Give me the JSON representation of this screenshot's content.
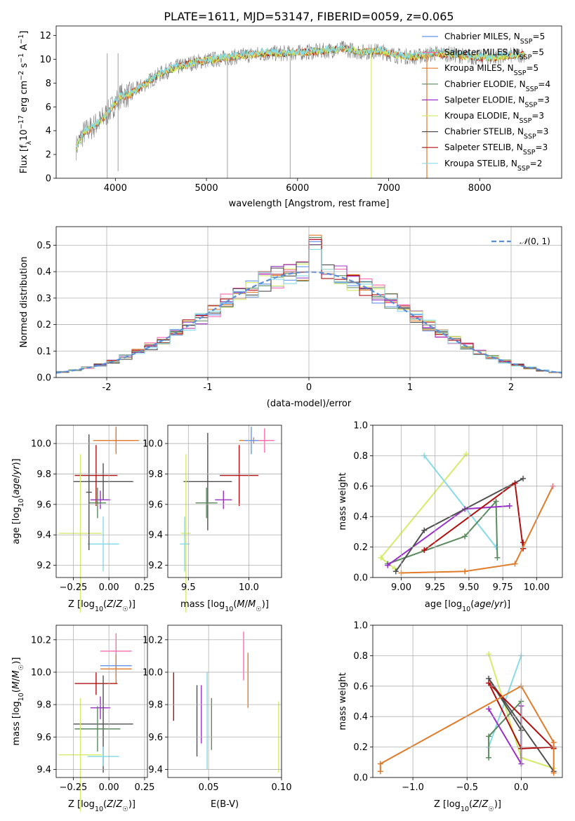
{
  "figure": {
    "title": "PLATE=1611, MJD=53147, FIBERID=0059, z=0.065"
  },
  "colors": {
    "Chabrier MILES": "#6495ed",
    "Salpeter MILES": "#ff69b4",
    "Kroupa MILES": "#e07b2a",
    "Chabrier ELODIE": "#5a8a5e",
    "Salpeter ELODIE": "#9b30c8",
    "Kroupa ELODIE": "#d4ec6a",
    "Chabrier STELIB": "#505050",
    "Salpeter STELIB": "#b01010",
    "Kroupa STELIB": "#87dbe6",
    "data": "#808080",
    "normal": "#5b8dd6"
  },
  "chart_data": [
    {
      "type": "line",
      "id": "spectrum",
      "xlabel": "wavelength [Angstrom, rest frame]",
      "ylabel": "Flux [f$_\\lambda$10$^{-17}$ erg cm$^{-2}$ s$^{-1}$ A$^{-1}$]",
      "xlim": [
        3350,
        8900
      ],
      "ylim": [
        0,
        12.8
      ],
      "xticks": [
        4000,
        5000,
        6000,
        7000,
        8000
      ],
      "yticks": [
        0,
        2,
        4,
        6,
        8,
        10,
        12
      ],
      "grid": false,
      "legend_position": "right",
      "legend": [
        {
          "model": "Chabrier MILES",
          "text": "Chabrier MILES, N",
          "sub": "SSP",
          "val": "=5"
        },
        {
          "model": "Salpeter MILES",
          "text": "Salpeter MILES, N",
          "sub": "SSP",
          "val": "=5"
        },
        {
          "model": "Kroupa MILES",
          "text": "Kroupa MILES, N",
          "sub": "SSP",
          "val": "=5"
        },
        {
          "model": "Chabrier ELODIE",
          "text": "Chabrier ELODIE, N",
          "sub": "SSP",
          "val": "=4"
        },
        {
          "model": "Salpeter ELODIE",
          "text": "Salpeter ELODIE, N",
          "sub": "SSP",
          "val": "=3"
        },
        {
          "model": "Kroupa ELODIE",
          "text": "Kroupa ELODIE, N",
          "sub": "SSP",
          "val": "=3"
        },
        {
          "model": "Chabrier STELIB",
          "text": "Chabrier STELIB, N",
          "sub": "SSP",
          "val": "=3"
        },
        {
          "model": "Salpeter STELIB",
          "text": "Salpeter STELIB, N",
          "sub": "SSP",
          "val": "=3"
        },
        {
          "model": "Kroupa STELIB",
          "text": "Kroupa STELIB, N",
          "sub": "SSP",
          "val": "=2"
        }
      ],
      "continuum_wavelength": [
        3570,
        3650,
        3750,
        3850,
        3950,
        4050,
        4150,
        4300,
        4500,
        4700,
        4900,
        5100,
        5300,
        5500,
        5700,
        5900,
        6100,
        6300,
        6500,
        6700,
        6900,
        7100,
        7300,
        7500,
        7700,
        7900,
        8100,
        8300,
        8500
      ],
      "continuum_flux": [
        2.6,
        3.8,
        4.3,
        4.9,
        5.8,
        6.9,
        7.0,
        7.8,
        8.8,
        9.4,
        9.8,
        10.0,
        10.2,
        10.4,
        10.5,
        10.5,
        10.6,
        10.7,
        10.9,
        10.6,
        10.7,
        10.3,
        10.2,
        10.5,
        10.4,
        10.2,
        10.1,
        10.3,
        10.4
      ]
    },
    {
      "type": "line",
      "id": "residuals",
      "xlabel": "(data-model)/error",
      "ylabel": "Normed distribution",
      "xlim": [
        -2.5,
        2.5
      ],
      "ylim": [
        0,
        0.57
      ],
      "xticks": [
        -2,
        -1,
        0,
        1,
        2
      ],
      "yticks": [
        0.0,
        0.1,
        0.2,
        0.3,
        0.4,
        0.5
      ],
      "grid": true,
      "legend_position": "top-right",
      "legend_label": "N(0, 1)",
      "bin_width": 0.125
    },
    {
      "type": "scatter",
      "id": "age-vs-Z",
      "xlabel": "Z [log10(Z/Z☉)]",
      "ylabel": "age  [log10(age/yr)]",
      "xlim": [
        -0.37,
        0.27
      ],
      "ylim": [
        9.12,
        10.12
      ],
      "xticks": [
        -0.25,
        0.0,
        0.25
      ],
      "xticklabels": [
        "−0.25",
        "0.00",
        "0.25"
      ],
      "yticks": [
        9.2,
        9.4,
        9.6,
        9.8,
        10.0
      ],
      "grid": true,
      "errorbars": [
        {
          "model": "Salpeter MILES",
          "x": 0.05,
          "y": 10.02,
          "xerr": 0.13,
          "yerr": 0.07
        },
        {
          "model": "Kroupa MILES",
          "x": 0.05,
          "y": 10.02,
          "xerr": 0.16,
          "yerr": 0.09
        },
        {
          "model": "Chabrier STELIB",
          "x": -0.04,
          "y": 9.75,
          "xerr": 0.21,
          "yerr": 0.12
        },
        {
          "model": "Salpeter STELIB",
          "x": -0.09,
          "y": 9.79,
          "xerr": 0.15,
          "yerr": 0.2
        },
        {
          "model": "Salpeter ELODIE",
          "x": -0.06,
          "y": 9.63,
          "xerr": 0.07,
          "yerr": 0.06
        },
        {
          "model": "Chabrier ELODIE",
          "x": -0.08,
          "y": 9.61,
          "xerr": 0.06,
          "yerr": 0.1
        },
        {
          "model": "Kroupa ELODIE",
          "x": -0.2,
          "y": 9.41,
          "xerr": 0.15,
          "yerr": 0.52
        },
        {
          "model": "Kroupa STELIB",
          "x": -0.04,
          "y": 9.34,
          "xerr": 0.11,
          "yerr": 0.18
        },
        {
          "model": "Chabrier STELIB",
          "x": -0.14,
          "y": 9.68,
          "xerr": 0.02,
          "yerr": 0.38
        }
      ]
    },
    {
      "type": "scatter",
      "id": "age-vs-mass",
      "xlabel": "mass [log10(M/M☉)]",
      "ylabel": "",
      "xlim": [
        9.33,
        10.27
      ],
      "ylim": [
        9.12,
        10.12
      ],
      "xticks": [
        9.5,
        10.0
      ],
      "xticklabels": [
        "9.5",
        "10.0"
      ],
      "yticks": [
        9.2,
        9.4,
        9.6,
        9.8,
        10.0
      ],
      "grid": true,
      "errorbars": [
        {
          "model": "Kroupa MILES",
          "x": 10.04,
          "y": 10.02,
          "xerr": 0.12,
          "yerr": 0.02
        },
        {
          "model": "Salpeter MILES",
          "x": 10.13,
          "y": 10.02,
          "xerr": 0.08,
          "yerr": 0.08
        },
        {
          "model": "Chabrier STELIB",
          "x": 9.66,
          "y": 9.75,
          "xerr": 0.2,
          "yerr": 0.32
        },
        {
          "model": "Salpeter STELIB",
          "x": 9.92,
          "y": 9.79,
          "xerr": 0.16,
          "yerr": 0.2
        },
        {
          "model": "Salpeter ELODIE",
          "x": 9.79,
          "y": 9.63,
          "xerr": 0.07,
          "yerr": 0.06
        },
        {
          "model": "Chabrier ELODIE",
          "x": 9.65,
          "y": 9.61,
          "xerr": 0.09,
          "yerr": 0.1
        },
        {
          "model": "Kroupa ELODIE",
          "x": 9.48,
          "y": 9.41,
          "xerr": 0.04,
          "yerr": 0.52
        },
        {
          "model": "Kroupa STELIB",
          "x": 9.47,
          "y": 9.34,
          "xerr": 0.04,
          "yerr": 0.18
        },
        {
          "model": "Chabrier MILES",
          "x": 10.02,
          "y": 10.02,
          "xerr": 0.06,
          "yerr": 0.09
        }
      ]
    },
    {
      "type": "line",
      "id": "weight-vs-age",
      "xlabel": "age  [log10(age/yr)]",
      "ylabel": "mass weight",
      "xlim": [
        8.79,
        10.19
      ],
      "ylim": [
        0,
        1.0
      ],
      "xticks": [
        9.0,
        9.25,
        9.5,
        9.75,
        10.0
      ],
      "xticklabels": [
        "9.00",
        "9.25",
        "9.50",
        "9.75",
        "10.00"
      ],
      "yticks": [
        0.0,
        0.2,
        0.4,
        0.6,
        0.8,
        1.0
      ],
      "grid": true,
      "series": [
        {
          "model": "Kroupa ELODIE",
          "x": [
            8.95,
            8.85,
            9.48
          ],
          "y": [
            0.06,
            0.13,
            0.81
          ]
        },
        {
          "model": "Kroupa STELIB",
          "x": [
            9.17,
            9.7
          ],
          "y": [
            0.8,
            0.2
          ]
        },
        {
          "model": "Chabrier ELODIE",
          "x": [
            8.9,
            9.47,
            9.7,
            9.71
          ],
          "y": [
            0.09,
            0.27,
            0.5,
            0.13
          ]
        },
        {
          "model": "Salpeter ELODIE",
          "x": [
            8.9,
            9.47,
            9.8
          ],
          "y": [
            0.08,
            0.45,
            0.47
          ]
        },
        {
          "model": "Chabrier STELIB",
          "x": [
            8.96,
            9.17,
            9.9
          ],
          "y": [
            0.04,
            0.31,
            0.65
          ]
        },
        {
          "model": "Salpeter STELIB",
          "x": [
            9.17,
            9.84,
            9.9,
            9.9
          ],
          "y": [
            0.18,
            0.62,
            0.19,
            0.23
          ]
        },
        {
          "model": "Kroupa MILES",
          "x": [
            9.0,
            9.47,
            9.84,
            10.12
          ],
          "y": [
            0.03,
            0.04,
            0.09,
            0.6
          ]
        },
        {
          "model": "Salpeter MILES",
          "x": [
            10.12
          ],
          "y": [
            0.6
          ]
        }
      ]
    },
    {
      "type": "scatter",
      "id": "mass-vs-Z",
      "xlabel": "Z [log10(Z/Z☉)]",
      "ylabel": "mass [log10(M/M☉)]",
      "xlim": [
        -0.37,
        0.27
      ],
      "ylim": [
        9.35,
        10.29
      ],
      "xticks": [
        -0.25,
        0.0,
        0.25
      ],
      "xticklabels": [
        "−0.25",
        "0.00",
        "0.25"
      ],
      "yticks": [
        9.4,
        9.6,
        9.8,
        10.0,
        10.2
      ],
      "grid": true,
      "errorbars": [
        {
          "model": "Salpeter MILES",
          "x": 0.05,
          "y": 10.13,
          "xerr": 0.11,
          "yerr": 0.11
        },
        {
          "model": "Chabrier MILES",
          "x": 0.05,
          "y": 10.04,
          "xerr": 0.11,
          "yerr": 0.07
        },
        {
          "model": "Kroupa MILES",
          "x": 0.05,
          "y": 10.02,
          "xerr": 0.11,
          "yerr": 0.09
        },
        {
          "model": "Salpeter STELIB",
          "x": -0.09,
          "y": 9.93,
          "xerr": 0.15,
          "yerr": 0.07
        },
        {
          "model": "Salpeter ELODIE",
          "x": -0.06,
          "y": 9.78,
          "xerr": 0.07,
          "yerr": 0.07
        },
        {
          "model": "Chabrier STELIB",
          "x": -0.04,
          "y": 9.68,
          "xerr": 0.21,
          "yerr": 0.3
        },
        {
          "model": "Chabrier ELODIE",
          "x": -0.08,
          "y": 9.65,
          "xerr": 0.16,
          "yerr": 0.14
        },
        {
          "model": "Kroupa ELODIE",
          "x": -0.2,
          "y": 9.49,
          "xerr": 0.15,
          "yerr": 0.35
        },
        {
          "model": "Kroupa STELIB",
          "x": -0.04,
          "y": 9.48,
          "xerr": 0.11,
          "yerr": 0.06
        }
      ]
    },
    {
      "type": "scatter",
      "id": "mass-vs-ebv",
      "xlabel": "E(B-V)",
      "ylabel": "",
      "xlim": [
        0.022,
        0.1
      ],
      "ylim": [
        9.35,
        10.29
      ],
      "xticks": [
        0.05,
        0.1
      ],
      "xticklabels": [
        "0.05",
        "0.10"
      ],
      "yticks": [
        9.4,
        9.6,
        9.8,
        10.0,
        10.2
      ],
      "grid": true,
      "errorbars": [
        {
          "model": "Salpeter STELIB",
          "x": 0.026,
          "y": 9.85,
          "xerr": 0,
          "yerr": 0.15
        },
        {
          "model": "Chabrier STELIB",
          "x": 0.042,
          "y": 9.7,
          "xerr": 0,
          "yerr": 0.22
        },
        {
          "model": "Salpeter ELODIE",
          "x": 0.045,
          "y": 9.74,
          "xerr": 0,
          "yerr": 0.18
        },
        {
          "model": "Kroupa STELIB",
          "x": 0.049,
          "y": 9.7,
          "xerr": 0,
          "yerr": 0.3
        },
        {
          "model": "Chabrier ELODIE",
          "x": 0.052,
          "y": 9.68,
          "xerr": 0,
          "yerr": 0.16
        },
        {
          "model": "Salpeter MILES",
          "x": 0.074,
          "y": 10.1,
          "xerr": 0,
          "yerr": 0.15
        },
        {
          "model": "Kroupa MILES",
          "x": 0.077,
          "y": 9.95,
          "xerr": 0,
          "yerr": 0.17
        },
        {
          "model": "Kroupa ELODIE",
          "x": 0.098,
          "y": 9.6,
          "xerr": 0,
          "yerr": 0.22
        }
      ]
    },
    {
      "type": "line",
      "id": "weight-vs-Z",
      "xlabel": "Z [log10(Z/Z☉)]",
      "ylabel": "mass weight",
      "xlim": [
        -1.37,
        0.38
      ],
      "ylim": [
        0,
        1.0
      ],
      "xticks": [
        -1.0,
        -0.5,
        0.0
      ],
      "xticklabels": [
        "−1.0",
        "−0.5",
        "0.0"
      ],
      "yticks": [
        0.0,
        0.2,
        0.4,
        0.6,
        0.8,
        1.0
      ],
      "grid": true,
      "series": [
        {
          "model": "Kroupa ELODIE",
          "x": [
            -0.3,
            0.0,
            0.3
          ],
          "y": [
            0.81,
            0.13,
            0.06
          ]
        },
        {
          "model": "Kroupa STELIB",
          "x": [
            -0.3,
            0.0
          ],
          "y": [
            0.2,
            0.8
          ]
        },
        {
          "model": "Chabrier ELODIE",
          "x": [
            0.0,
            -0.3,
            -0.3
          ],
          "y": [
            0.5,
            0.27,
            0.13
          ]
        },
        {
          "model": "Salpeter ELODIE",
          "x": [
            -0.3,
            0.0,
            0.0
          ],
          "y": [
            0.45,
            0.09,
            0.47
          ]
        },
        {
          "model": "Chabrier STELIB",
          "x": [
            0.3,
            -0.3,
            0.0
          ],
          "y": [
            0.04,
            0.65,
            0.31
          ]
        },
        {
          "model": "Salpeter STELIB",
          "x": [
            0.3,
            0.0,
            -0.3,
            0.3
          ],
          "y": [
            0.2,
            0.19,
            0.62,
            0.19
          ]
        },
        {
          "model": "Kroupa MILES",
          "x": [
            -1.3,
            -1.3,
            0.0,
            0.3,
            0.3
          ],
          "y": [
            0.04,
            0.09,
            0.6,
            0.23,
            0.03
          ]
        }
      ]
    }
  ]
}
